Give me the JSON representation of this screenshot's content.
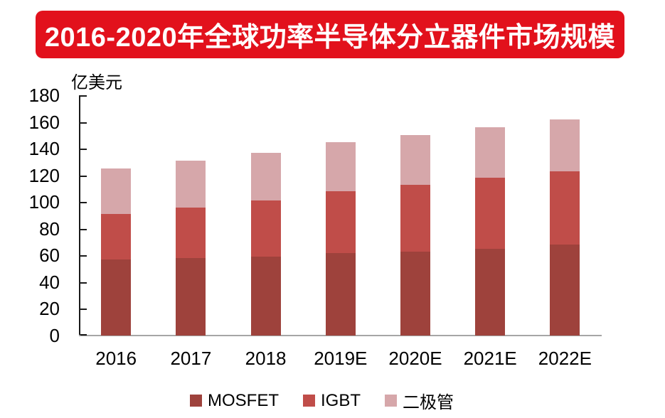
{
  "header": {
    "title": "2016-2020年全球功率半导体分立器件市场规模",
    "banner_color": "#e2111c",
    "title_color": "#ffffff"
  },
  "chart_data": {
    "type": "bar",
    "stacked": true,
    "title": "2016-2020年全球功率半导体分立器件市场规模",
    "unit_label": "亿美元",
    "categories": [
      "2016",
      "2017",
      "2018",
      "2019E",
      "2020E",
      "2021E",
      "2022E"
    ],
    "series": [
      {
        "name": "MOSFET",
        "color": "#9e423c",
        "values": [
          57,
          58,
          59,
          62,
          63,
          65,
          68
        ]
      },
      {
        "name": "IGBT",
        "color": "#c04d49",
        "values": [
          34,
          38,
          42,
          46,
          50,
          53,
          55
        ]
      },
      {
        "name": "二极管",
        "color": "#d6a7aa",
        "values": [
          34,
          35,
          36,
          37,
          37,
          38,
          39
        ]
      }
    ],
    "totals": [
      125,
      131,
      137,
      145,
      150,
      156,
      162
    ],
    "ylim": [
      0,
      180
    ],
    "yticks": [
      0,
      20,
      40,
      60,
      80,
      100,
      120,
      140,
      160,
      180
    ],
    "grid": false,
    "legend_position": "bottom",
    "axis_color": "#1a1a1a",
    "baseline_color": "#a6a6a6",
    "label_color": "#000000"
  }
}
